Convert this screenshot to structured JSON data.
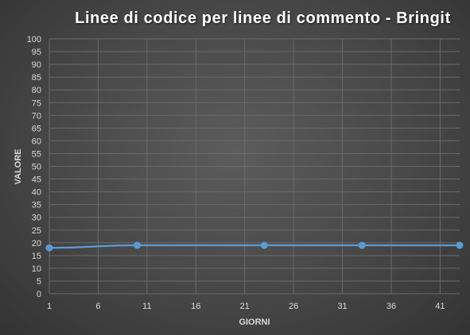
{
  "chart_data": {
    "type": "line",
    "title": "Linee di codice per linee di commento - Bringit",
    "xlabel": "GIORNI",
    "ylabel": "VALORE",
    "xlim": [
      1,
      43
    ],
    "ylim": [
      0,
      100
    ],
    "x_ticks": [
      1,
      6,
      11,
      16,
      21,
      26,
      31,
      36,
      41
    ],
    "y_ticks": [
      0,
      5,
      10,
      15,
      20,
      25,
      30,
      35,
      40,
      45,
      50,
      55,
      60,
      65,
      70,
      75,
      80,
      85,
      90,
      95,
      100
    ],
    "grid": true,
    "series": [
      {
        "x": [
          1,
          10,
          23,
          33,
          43
        ],
        "y": [
          18,
          19,
          19,
          19,
          19
        ],
        "color": "#5b9bd5"
      }
    ],
    "gridline_color": "#6a6a6a",
    "text_color": "#d9d9d9"
  }
}
